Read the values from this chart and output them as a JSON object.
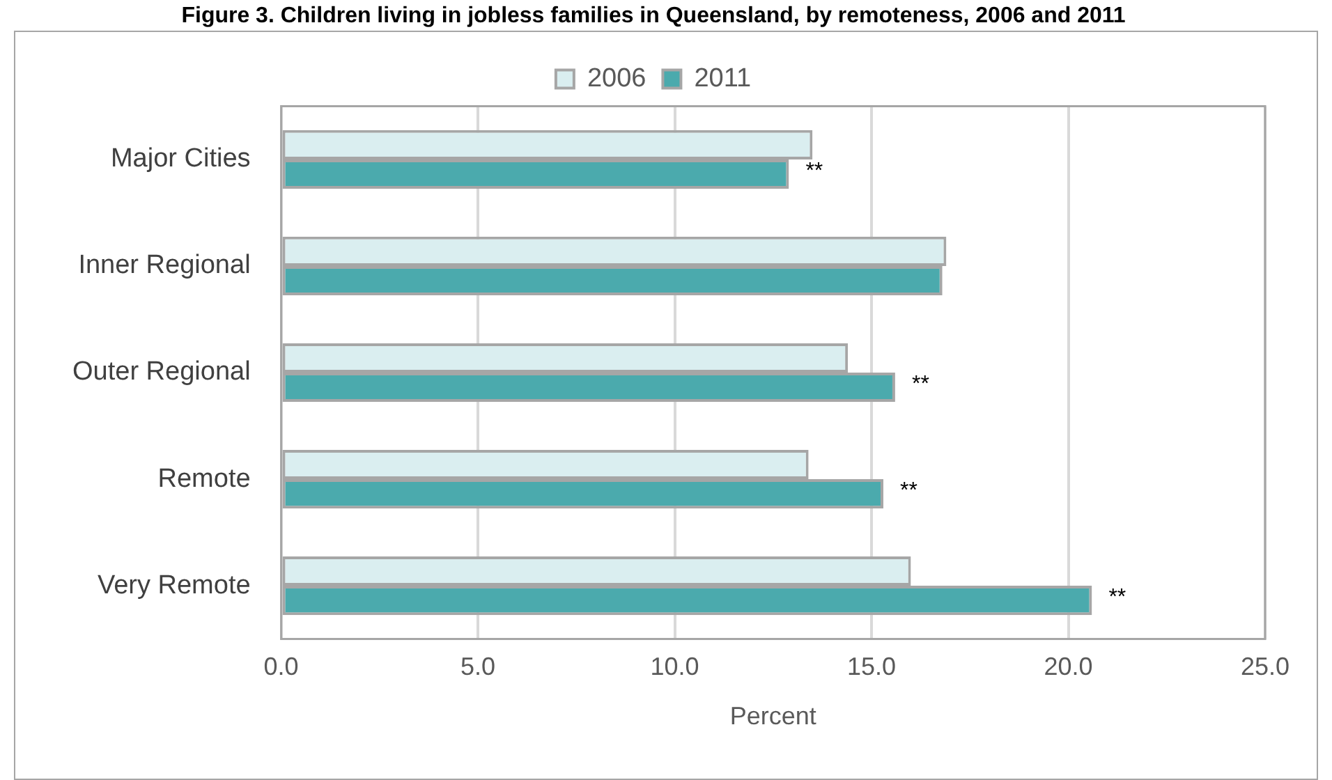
{
  "chart_data": {
    "type": "bar",
    "orientation": "horizontal",
    "title": "Figure 3. Children living in jobless families in Queensland, by remoteness, 2006 and 2011",
    "xlabel": "Percent",
    "categories": [
      "Major Cities",
      "Inner Regional",
      "Outer Regional",
      "Remote",
      "Very Remote"
    ],
    "series": [
      {
        "name": "2006",
        "color": "#daeef0",
        "values": [
          13.5,
          16.9,
          14.4,
          13.4,
          16.0
        ]
      },
      {
        "name": "2011",
        "color": "#4baaad",
        "values": [
          12.9,
          16.8,
          15.6,
          15.3,
          20.6
        ]
      }
    ],
    "xlim": [
      0,
      25
    ],
    "xticks": [
      {
        "value": 0,
        "label": "0.0"
      },
      {
        "value": 5,
        "label": "5.0"
      },
      {
        "value": 10,
        "label": "10.0"
      },
      {
        "value": 15,
        "label": "15.0"
      },
      {
        "value": 20,
        "label": "20.0"
      },
      {
        "value": 25,
        "label": "25.0"
      }
    ],
    "annotations": [
      {
        "text": "**",
        "x": 12.9,
        "y": "Major Cities"
      },
      {
        "text": "**",
        "x": 15.6,
        "y": "Outer Regional"
      },
      {
        "text": "**",
        "x": 15.3,
        "y": "Remote"
      },
      {
        "text": "**",
        "x": 20.6,
        "y": "Very Remote"
      }
    ],
    "grid": "x",
    "legend": "top"
  }
}
